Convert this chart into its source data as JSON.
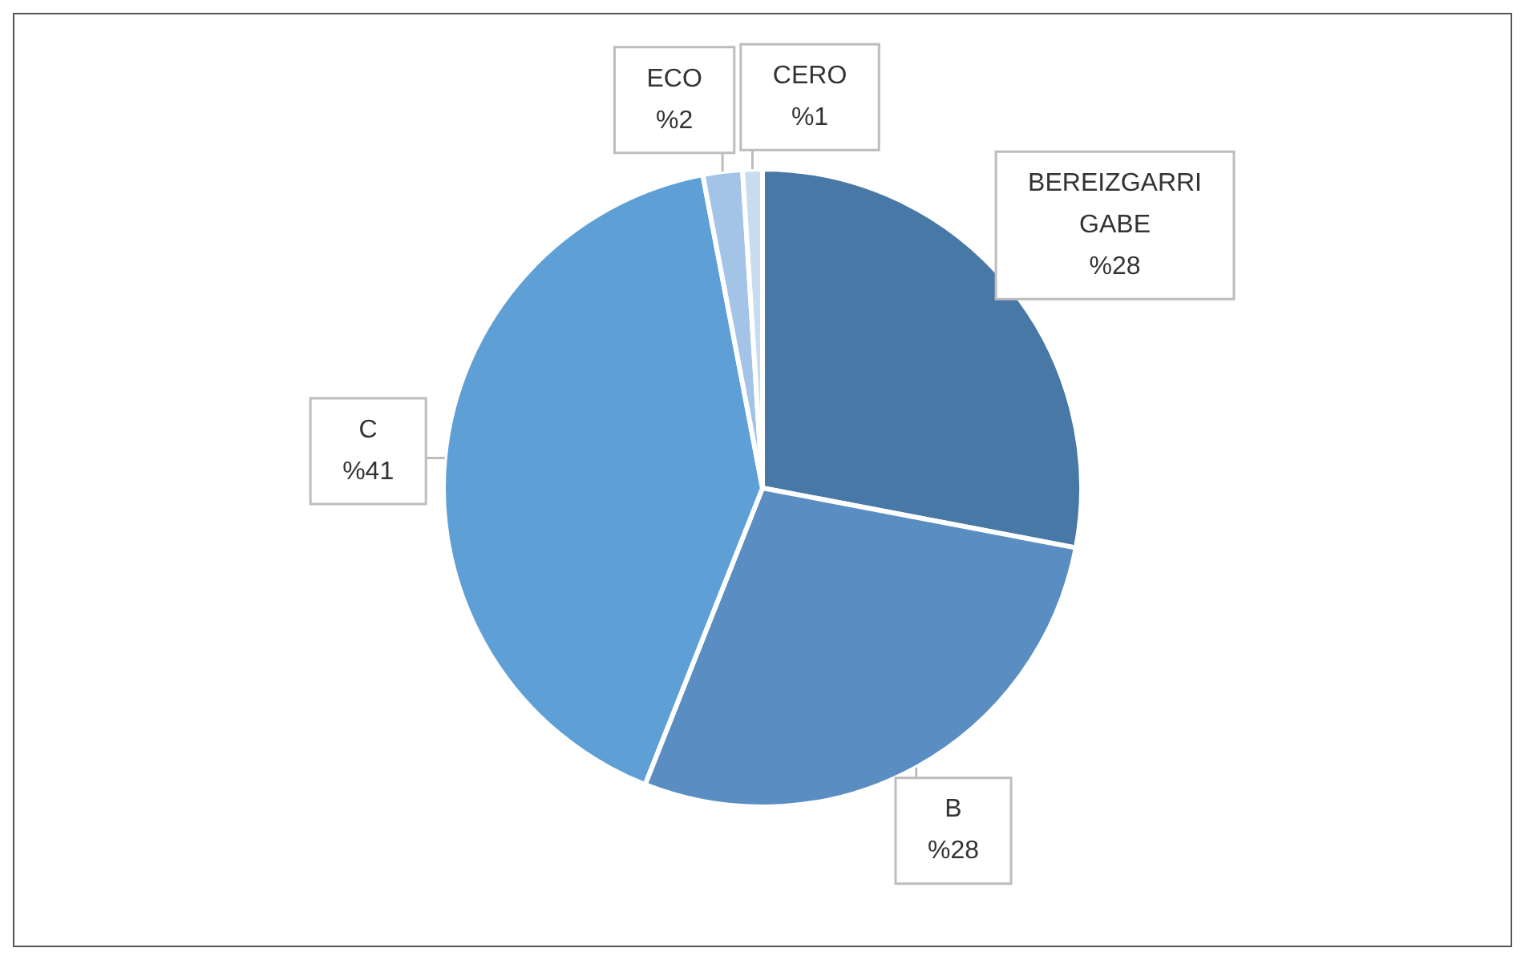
{
  "chart_data": {
    "type": "pie",
    "categories": [
      "BEREIZGARRI GABE",
      "B",
      "C",
      "ECO",
      "CERO"
    ],
    "values": [
      28,
      28,
      41,
      2,
      1
    ],
    "value_labels": [
      "%28",
      "%28",
      "%41",
      "%2",
      "%1"
    ],
    "colors": [
      "#4878a6",
      "#5a8ec2",
      "#5e9fd6",
      "#a3c4e6",
      "#c8dcf0"
    ],
    "legend": false
  }
}
